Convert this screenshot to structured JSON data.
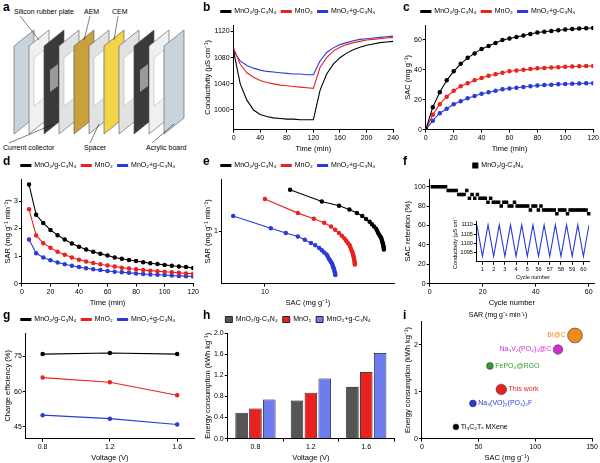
{
  "panel_a": {
    "panel": "a",
    "labels": [
      "Silicon rubber plate",
      "AEM",
      "CEM",
      "Current collector",
      "Spacer",
      "Acrylic board"
    ]
  },
  "chart_data": [
    {
      "panel": "b",
      "type": "line",
      "xlabel": "Time (min)",
      "ylabel": "Conductivity (μS cm⁻¹)",
      "x": [
        0,
        10,
        20,
        30,
        40,
        50,
        60,
        70,
        80,
        90,
        100,
        110,
        120,
        130,
        140,
        150,
        160,
        170,
        180,
        190,
        200,
        210,
        220,
        230,
        240
      ],
      "xlim": [
        0,
        240
      ],
      "xticks": [
        0,
        40,
        80,
        120,
        160,
        200,
        240
      ],
      "ylim": [
        970,
        1130
      ],
      "yticks": [
        1000,
        1040,
        1080,
        1120
      ],
      "grid": false,
      "legend": "top",
      "marker": "none",
      "line_style": "solid",
      "series": [
        {
          "name": "MnO₂/g-C₃N₄",
          "color": "#000000",
          "values": [
            1090,
            1040,
            1015,
            1000,
            993,
            990,
            988,
            987,
            986,
            986,
            985,
            985,
            985,
            1030,
            1055,
            1070,
            1080,
            1087,
            1092,
            1096,
            1099,
            1101,
            1103,
            1104,
            1105
          ]
        },
        {
          "name": "MnO₂",
          "color": "#e8221f",
          "values": [
            1095,
            1070,
            1057,
            1050,
            1045,
            1042,
            1040,
            1038,
            1037,
            1036,
            1035,
            1034,
            1033,
            1065,
            1080,
            1090,
            1096,
            1100,
            1103,
            1105,
            1107,
            1108,
            1109,
            1110,
            1111
          ]
        },
        {
          "name": "MnO₂+g-C₃N₄",
          "color": "#2a3bd8",
          "values": [
            1090,
            1075,
            1068,
            1064,
            1061,
            1059,
            1058,
            1057,
            1056,
            1055,
            1055,
            1054,
            1054,
            1075,
            1088,
            1095,
            1100,
            1103,
            1106,
            1108,
            1109,
            1110,
            1111,
            1112,
            1113
          ]
        }
      ]
    },
    {
      "panel": "c",
      "type": "line",
      "xlabel": "Time (min)",
      "ylabel": "SAC (mg g⁻¹)",
      "x": [
        0,
        5,
        10,
        15,
        20,
        25,
        30,
        35,
        40,
        45,
        50,
        55,
        60,
        65,
        70,
        75,
        80,
        85,
        90,
        95,
        100,
        105,
        110,
        115,
        120
      ],
      "xlim": [
        0,
        120
      ],
      "xticks": [
        0,
        20,
        40,
        60,
        80,
        100,
        120
      ],
      "ylim": [
        0,
        70
      ],
      "yticks": [
        0,
        20,
        40,
        60
      ],
      "grid": false,
      "legend": "top",
      "marker": "circle",
      "line_style": "solid",
      "series": [
        {
          "name": "MnO₂/g-C₃N₄",
          "color": "#000000",
          "values": [
            0,
            15,
            25,
            33,
            39,
            44,
            48,
            51,
            54,
            56,
            58,
            60,
            61,
            62,
            63,
            64,
            65,
            65.5,
            66,
            66.5,
            67,
            67.3,
            67.6,
            67.8,
            68
          ]
        },
        {
          "name": "MnO₂",
          "color": "#e8221f",
          "values": [
            0,
            10,
            17,
            22,
            26,
            29,
            31,
            33,
            34.5,
            36,
            37,
            38,
            39,
            39.5,
            40,
            40.5,
            41,
            41.3,
            41.6,
            41.8,
            42,
            42.2,
            42.4,
            42.5,
            42.6
          ]
        },
        {
          "name": "MnO₂+g-C₃N₄",
          "color": "#2a3bd8",
          "values": [
            0,
            6,
            11,
            14,
            17,
            19,
            21,
            22.5,
            24,
            25,
            26,
            27,
            27.5,
            28,
            28.5,
            29,
            29.5,
            29.8,
            30,
            30.3,
            30.5,
            30.7,
            30.9,
            31,
            31.1
          ]
        }
      ]
    },
    {
      "panel": "d",
      "type": "line",
      "xlabel": "Time (min)",
      "ylabel": "SAR (mg g⁻¹ min⁻¹)",
      "x": [
        5,
        10,
        15,
        20,
        25,
        30,
        35,
        40,
        45,
        50,
        55,
        60,
        65,
        70,
        75,
        80,
        85,
        90,
        95,
        100,
        105,
        110,
        115,
        120
      ],
      "xlim": [
        0,
        120
      ],
      "xticks": [
        0,
        20,
        40,
        60,
        80,
        100,
        120
      ],
      "ylim": [
        0,
        3.8
      ],
      "yticks": [
        0,
        1,
        2,
        3
      ],
      "grid": false,
      "legend": "top",
      "marker": "circle",
      "line_style": "solid",
      "series": [
        {
          "name": "MnO₂/g-C₃N₄",
          "color": "#000000",
          "values": [
            3.6,
            2.5,
            2.2,
            1.95,
            1.76,
            1.6,
            1.46,
            1.34,
            1.24,
            1.16,
            1.08,
            1.02,
            0.95,
            0.9,
            0.86,
            0.82,
            0.78,
            0.74,
            0.71,
            0.68,
            0.65,
            0.62,
            0.6,
            0.57
          ]
        },
        {
          "name": "MnO₂",
          "color": "#e8221f",
          "values": [
            2.7,
            1.75,
            1.47,
            1.3,
            1.16,
            1.05,
            0.95,
            0.87,
            0.8,
            0.75,
            0.7,
            0.66,
            0.62,
            0.58,
            0.55,
            0.52,
            0.49,
            0.47,
            0.45,
            0.43,
            0.41,
            0.39,
            0.37,
            0.36
          ]
        },
        {
          "name": "MnO₂+g-C₃N₄",
          "color": "#2a3bd8",
          "values": [
            1.6,
            1.1,
            0.95,
            0.85,
            0.77,
            0.7,
            0.65,
            0.6,
            0.56,
            0.52,
            0.49,
            0.46,
            0.43,
            0.41,
            0.39,
            0.37,
            0.35,
            0.33,
            0.32,
            0.31,
            0.29,
            0.28,
            0.27,
            0.26
          ]
        }
      ]
    },
    {
      "panel": "e",
      "type": "line",
      "xlabel": "SAC (mg g⁻¹)",
      "ylabel": "SAR (mg g⁻¹ min⁻¹)",
      "log": true,
      "xlim": [
        5,
        80
      ],
      "xticks": [
        10
      ],
      "ylim": [
        0.2,
        5
      ],
      "yticks": [
        1
      ],
      "grid": false,
      "legend": "top",
      "marker": "circle",
      "line_style": "solid",
      "series": [
        {
          "name": "MnO₂/g-C₃N₄",
          "color": "#000000",
          "x": [
            15,
            25,
            33,
            39,
            44,
            48,
            51,
            54,
            56,
            58,
            60,
            61,
            62,
            63,
            64,
            65,
            65.5,
            66,
            66.5,
            67,
            67.3,
            67.6,
            67.8,
            68
          ],
          "values": [
            3.6,
            2.5,
            2.2,
            1.95,
            1.76,
            1.6,
            1.46,
            1.34,
            1.24,
            1.16,
            1.08,
            1.02,
            0.95,
            0.9,
            0.86,
            0.82,
            0.78,
            0.74,
            0.71,
            0.68,
            0.65,
            0.62,
            0.6,
            0.57
          ]
        },
        {
          "name": "MnO₂",
          "color": "#e8221f",
          "x": [
            10,
            17,
            22,
            26,
            29,
            31,
            33,
            34.5,
            36,
            37,
            38,
            39,
            39.5,
            40,
            40.5,
            41,
            41.3,
            41.6,
            41.8,
            42,
            42.2,
            42.4,
            42.5,
            42.6
          ],
          "values": [
            2.7,
            1.75,
            1.47,
            1.3,
            1.16,
            1.05,
            0.95,
            0.87,
            0.8,
            0.75,
            0.7,
            0.66,
            0.62,
            0.58,
            0.55,
            0.52,
            0.49,
            0.47,
            0.45,
            0.43,
            0.41,
            0.39,
            0.37,
            0.36
          ]
        },
        {
          "name": "MnO₂+g-C₃N₄",
          "color": "#2a3bd8",
          "x": [
            6,
            11,
            14,
            17,
            19,
            21,
            22.5,
            24,
            25,
            26,
            27,
            27.5,
            28,
            28.5,
            29,
            29.5,
            29.8,
            30,
            30.3,
            30.5,
            30.7,
            30.9,
            31,
            31.1
          ],
          "values": [
            1.6,
            1.1,
            0.95,
            0.85,
            0.77,
            0.7,
            0.65,
            0.6,
            0.56,
            0.52,
            0.49,
            0.46,
            0.43,
            0.41,
            0.39,
            0.37,
            0.35,
            0.33,
            0.32,
            0.31,
            0.29,
            0.28,
            0.27,
            0.26
          ]
        }
      ]
    },
    {
      "panel": "f",
      "type": "scatter",
      "xlabel": "Cycle number",
      "ylabel": "SAC retention (%)",
      "x": [
        1,
        2,
        3,
        4,
        5,
        6,
        7,
        8,
        9,
        10,
        11,
        12,
        13,
        14,
        15,
        16,
        17,
        18,
        19,
        20,
        21,
        22,
        23,
        24,
        25,
        26,
        27,
        28,
        29,
        30,
        31,
        32,
        33,
        34,
        35,
        36,
        37,
        38,
        39,
        40,
        41,
        42,
        43,
        44,
        45,
        46,
        47,
        48,
        49,
        50,
        51,
        52,
        53,
        54,
        55,
        56,
        57,
        58,
        59,
        60
      ],
      "xlim": [
        0,
        62
      ],
      "xticks": [
        0,
        20,
        40,
        60
      ],
      "ylim": [
        0,
        108
      ],
      "yticks": [
        0,
        20,
        40,
        60,
        80,
        100
      ],
      "grid": false,
      "legend": "top",
      "marker": "square",
      "line_style": "none",
      "series": [
        {
          "name": "MnO₂/g-C₃N₄",
          "color": "#000000",
          "values": [
            100,
            100,
            100,
            100,
            100,
            100,
            96,
            96,
            96,
            96,
            92,
            92,
            92,
            96,
            88,
            92,
            88,
            92,
            88,
            88,
            88,
            84,
            88,
            84,
            84,
            84,
            80,
            84,
            84,
            80,
            80,
            84,
            80,
            80,
            80,
            80,
            80,
            76,
            80,
            80,
            76,
            80,
            76,
            76,
            76,
            76,
            76,
            72,
            76,
            76,
            76,
            72,
            76,
            76,
            76,
            76,
            76,
            76,
            76,
            72
          ]
        }
      ],
      "inset": {
        "type": "line",
        "xlabel": "Cycle number",
        "ylabel": "Conductivity (μS cm⁻¹)",
        "x": [
          0,
          0.5,
          1,
          1.5,
          2,
          2.5,
          3,
          3.5,
          4,
          4.5,
          5,
          5.5,
          6,
          6.5,
          7,
          7.5,
          8,
          8.5,
          9,
          9.5,
          10
        ],
        "xlim": [
          0,
          10
        ],
        "xticks": [
          {
            "value": 0.5,
            "label": "1"
          },
          {
            "value": 1.5,
            "label": "2"
          },
          {
            "value": 2.5,
            "label": "3"
          },
          {
            "value": 3.5,
            "label": "4"
          },
          {
            "value": 4.5,
            "label": "5"
          },
          {
            "value": 5.5,
            "label": "56"
          },
          {
            "value": 6.5,
            "label": "57"
          },
          {
            "value": 7.5,
            "label": "58"
          },
          {
            "value": 8.5,
            "label": "59"
          },
          {
            "value": 9.5,
            "label": "60"
          }
        ],
        "ylim": [
          1090,
          1112
        ],
        "yticks": [
          1095,
          1100,
          1105,
          1110
        ],
        "grid": false,
        "marker": "none",
        "line_style": "solid",
        "series": [
          {
            "color": "#2a3bd8",
            "values": [
              1110,
              1093,
              1110,
              1093,
              1110,
              1093,
              1110,
              1093,
              1110,
              1093,
              1110,
              1093,
              1110,
              1093,
              1110,
              1093,
              1110,
              1093,
              1110,
              1093,
              1110
            ]
          }
        ]
      }
    },
    {
      "panel": "g",
      "type": "line",
      "xlabel": "Voltage (V)",
      "ylabel": "Charge efficiency (%)",
      "x": [
        0.8,
        1.2,
        1.6
      ],
      "xlim": [
        0.7,
        1.7
      ],
      "xticks": [
        0.8,
        1.2,
        1.6
      ],
      "ylim": [
        40,
        85
      ],
      "yticks": [
        45,
        60,
        75
      ],
      "grid": false,
      "legend": "top",
      "marker": "circle",
      "line_style": "solid",
      "series": [
        {
          "name": "MnO₂/g-C₃N₄",
          "color": "#000000",
          "values": [
            76,
            76.5,
            76
          ]
        },
        {
          "name": "MnO₂",
          "color": "#e8221f",
          "values": [
            66,
            64,
            58.5
          ]
        },
        {
          "name": "MnO₂+g-C₃N₄",
          "color": "#2a3bd8",
          "values": [
            50,
            48.5,
            46
          ]
        }
      ]
    },
    {
      "panel": "h",
      "type": "bar",
      "xlabel": "Voltage (V)",
      "ylabel": "Energy consumption (kWh kg⁻¹)",
      "categories": [
        "0.8",
        "1.2",
        "1.6"
      ],
      "ylim": [
        0,
        2
      ],
      "yticks": [
        {
          "value": 0,
          "label": "0.0"
        },
        0.4,
        0.8,
        1.2,
        1.6,
        {
          "value": 2,
          "label": "2.0"
        }
      ],
      "grid": false,
      "legend": "top",
      "series": [
        {
          "name": "MnO₂/g-C₃N₄",
          "color": "#555555",
          "values": [
            0.49,
            0.72,
            0.98
          ]
        },
        {
          "name": "MnO₂",
          "color": "#e8221f",
          "values": [
            0.57,
            0.87,
            1.26
          ]
        },
        {
          "name": "MnO₂+g-C₃N₄",
          "color": "#6f7cf0",
          "values": [
            0.74,
            1.14,
            1.62
          ]
        }
      ]
    },
    {
      "panel": "i",
      "type": "bubble",
      "xlabel": "SAC (mg g⁻¹)",
      "ylabel": "Energy consumption (kWh kg⁻¹)",
      "zlabel": "SAR (mg g⁻¹ min⁻¹)",
      "xlim": [
        0,
        150
      ],
      "xticks": [
        0,
        50,
        100,
        150
      ],
      "ylim": [
        0,
        2.5
      ],
      "yticks": [
        0,
        1,
        2
      ],
      "grid": false,
      "series": [
        {
          "name": "Bi@C",
          "color": "#f28a1a",
          "x": [
            135
          ],
          "y": [
            2.2
          ],
          "z": [
            6.0
          ]
        },
        {
          "name": "Na₃V₂(PO₄)₃@C",
          "color": "#d62ad6",
          "x": [
            120
          ],
          "y": [
            1.9
          ],
          "z": [
            3.0
          ]
        },
        {
          "name": "FePO₄@RGO",
          "color": "#2f9e2f",
          "x": [
            60
          ],
          "y": [
            1.55
          ],
          "z": [
            1.5
          ]
        },
        {
          "name": "This work",
          "color": "#e8221f",
          "x": [
            70
          ],
          "y": [
            1.05
          ],
          "z": [
            3.6
          ]
        },
        {
          "name": "Na₃(VO)₂(PO₄)₂F",
          "color": "#2a3bd8",
          "x": [
            45
          ],
          "y": [
            0.75
          ],
          "z": [
            1.5
          ]
        },
        {
          "name": "Ti₃C₂Tₓ MXene",
          "color": "#000000",
          "x": [
            30
          ],
          "y": [
            0.25
          ],
          "z": [
            1.0
          ]
        }
      ]
    }
  ]
}
